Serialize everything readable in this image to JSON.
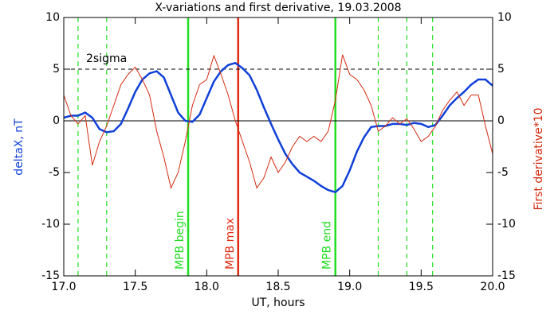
{
  "chart_data": {
    "type": "line",
    "title": "X-variations and first derivative, 19.03.2008",
    "xlabel": "UT, hours",
    "ylabel": "deltaX, nT",
    "y2label": "First derivative*10",
    "x": [
      17.0,
      17.05,
      17.1,
      17.15,
      17.2,
      17.25,
      17.3,
      17.35,
      17.4,
      17.45,
      17.5,
      17.55,
      17.6,
      17.65,
      17.7,
      17.75,
      17.8,
      17.85,
      17.9,
      17.95,
      18.0,
      18.05,
      18.1,
      18.15,
      18.2,
      18.25,
      18.3,
      18.35,
      18.4,
      18.45,
      18.5,
      18.55,
      18.6,
      18.65,
      18.7,
      18.75,
      18.8,
      18.85,
      18.9,
      18.95,
      19.0,
      19.05,
      19.1,
      19.15,
      19.2,
      19.25,
      19.3,
      19.35,
      19.4,
      19.45,
      19.5,
      19.55,
      19.6,
      19.65,
      19.7,
      19.75,
      19.8,
      19.85,
      19.9,
      19.95,
      20.0
    ],
    "series": [
      {
        "name": "deltaX, nT",
        "color": "#1040d8",
        "axis": "y",
        "values": [
          0.3,
          0.5,
          0.5,
          0.8,
          0.3,
          -0.8,
          -1.1,
          -1.0,
          -0.3,
          1.2,
          2.8,
          4.0,
          4.6,
          4.8,
          4.2,
          2.5,
          0.8,
          0.0,
          -0.1,
          0.6,
          2.2,
          3.8,
          4.8,
          5.4,
          5.6,
          5.1,
          4.4,
          3.0,
          1.3,
          -0.3,
          -1.8,
          -3.2,
          -4.2,
          -5.0,
          -5.4,
          -5.8,
          -6.3,
          -6.7,
          -6.9,
          -6.3,
          -4.8,
          -3.0,
          -1.6,
          -0.6,
          -0.5,
          -0.5,
          -0.3,
          -0.3,
          -0.4,
          -0.2,
          -0.3,
          -0.6,
          -0.4,
          0.5,
          1.5,
          2.2,
          2.8,
          3.5,
          4.0,
          4.0,
          3.4
        ]
      },
      {
        "name": "First derivative*10",
        "color": "#d42a10",
        "axis": "y2",
        "values": [
          2.5,
          0.5,
          -0.3,
          0.5,
          -4.3,
          -2.0,
          -0.5,
          1.5,
          3.5,
          4.5,
          5.2,
          4.0,
          2.5,
          -1.0,
          -3.5,
          -6.5,
          -5.0,
          -2.0,
          1.5,
          3.5,
          4.0,
          6.3,
          4.5,
          2.5,
          0.0,
          -2.0,
          -4.0,
          -6.5,
          -5.5,
          -3.5,
          -5.0,
          -4.0,
          -2.5,
          -1.5,
          -2.0,
          -1.5,
          -2.0,
          -1.0,
          2.0,
          6.4,
          4.5,
          4.0,
          3.0,
          1.5,
          -1.0,
          -0.5,
          0.3,
          -0.3,
          0.2,
          -0.8,
          -2.0,
          -1.5,
          -0.5,
          1.0,
          2.0,
          2.8,
          1.5,
          2.5,
          2.5,
          -0.5,
          -3.2
        ]
      }
    ],
    "xlim": [
      17.0,
      20.0
    ],
    "xticks": [
      {
        "value": 17.0,
        "label": "17.0"
      },
      {
        "value": 17.5,
        "label": "17.5"
      },
      {
        "value": 18.0,
        "label": "18.0"
      },
      {
        "value": 18.5,
        "label": "18.5"
      },
      {
        "value": 19.0,
        "label": "19.0"
      },
      {
        "value": 19.5,
        "label": "19.5"
      },
      {
        "value": 20.0,
        "label": "20.0"
      }
    ],
    "ylim": [
      -15,
      10
    ],
    "yticks": [
      -15,
      -10,
      -5,
      0,
      5,
      10
    ],
    "y2lim": [
      -15,
      10
    ],
    "y2ticks": [
      -15,
      -10,
      -5,
      0,
      5,
      10
    ],
    "vlines": [
      {
        "x": 17.1,
        "style": "dashed",
        "color": "#22dd22"
      },
      {
        "x": 17.3,
        "style": "dashed",
        "color": "#22dd22"
      },
      {
        "x": 17.87,
        "style": "solid",
        "color": "#22dd22",
        "label": "MPB begin"
      },
      {
        "x": 18.22,
        "style": "solid",
        "color": "#e02a10",
        "label": "MPB max"
      },
      {
        "x": 18.9,
        "style": "solid",
        "color": "#22dd22",
        "label": "MPB end"
      },
      {
        "x": 19.2,
        "style": "dashed",
        "color": "#22dd22"
      },
      {
        "x": 19.4,
        "style": "dashed",
        "color": "#22dd22"
      },
      {
        "x": 19.58,
        "style": "dashed",
        "color": "#22dd22"
      }
    ],
    "hlines": [
      {
        "y": 5,
        "style": "dashed",
        "color": "#000000",
        "label": "2sigma"
      },
      {
        "y": 0,
        "style": "solid",
        "color": "#000000"
      }
    ]
  }
}
